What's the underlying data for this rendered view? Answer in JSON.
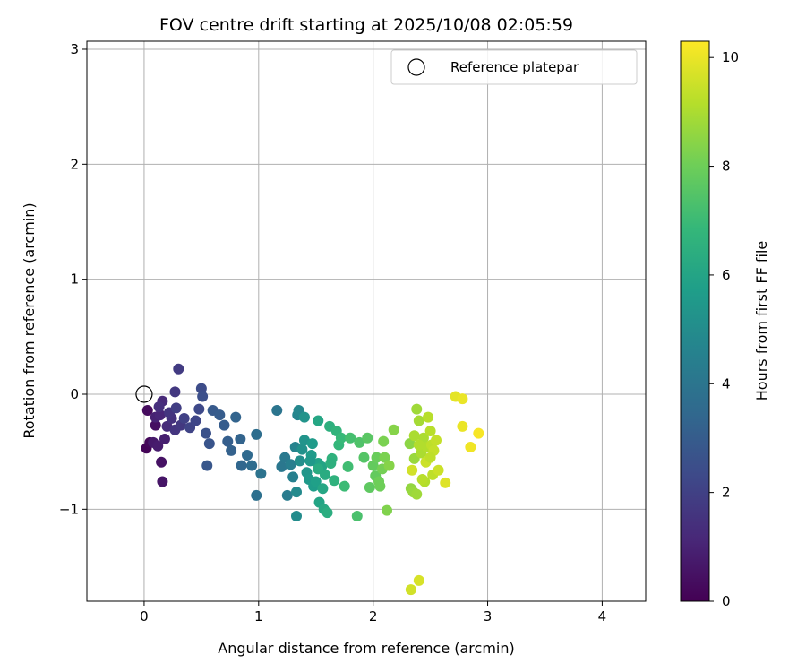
{
  "chart_data": {
    "type": "scatter",
    "title": "FOV centre drift starting at 2025/10/08 02:05:59",
    "xlabel": "Angular distance from reference (arcmin)",
    "ylabel": "Rotation from reference (arcmin)",
    "xlim": [
      -0.5,
      4.38
    ],
    "ylim": [
      -1.8,
      3.07
    ],
    "xticks": [
      0,
      1,
      2,
      3,
      4
    ],
    "xtick_labels": [
      "0",
      "1",
      "2",
      "3",
      "4"
    ],
    "yticks": [
      -1,
      0,
      1,
      2,
      3
    ],
    "ytick_labels": [
      "−1",
      "0",
      "1",
      "2",
      "3"
    ],
    "grid": true,
    "legend": {
      "position": "top-right",
      "label": "Reference platepar"
    },
    "reference_point": {
      "x": 0,
      "y": 0
    },
    "colorbar": {
      "label": "Hours from first FF file",
      "min": 0,
      "max": 10.3,
      "ticks": [
        0,
        2,
        4,
        6,
        8,
        10
      ],
      "tick_labels": [
        "0",
        "2",
        "4",
        "6",
        "8",
        "10"
      ],
      "colormap": [
        "#440154",
        "#482878",
        "#3e4989",
        "#31688e",
        "#26828e",
        "#1f9e89",
        "#35b779",
        "#6ece58",
        "#b5de2b",
        "#fde725"
      ]
    },
    "points": [
      [
        0.02,
        -0.47,
        0.1
      ],
      [
        0.05,
        -0.42,
        0.2
      ],
      [
        0.03,
        -0.14,
        0.3
      ],
      [
        0.1,
        -0.27,
        0.4
      ],
      [
        0.15,
        -0.59,
        0.5
      ],
      [
        0.16,
        -0.76,
        0.6
      ],
      [
        0.08,
        -0.42,
        0.7
      ],
      [
        0.12,
        -0.45,
        0.8
      ],
      [
        0.18,
        -0.39,
        0.9
      ],
      [
        0.1,
        -0.2,
        1.0
      ],
      [
        0.14,
        -0.18,
        1.1
      ],
      [
        0.16,
        -0.06,
        1.2
      ],
      [
        0.2,
        -0.28,
        1.3
      ],
      [
        0.13,
        -0.11,
        1.4
      ],
      [
        0.24,
        -0.21,
        1.5
      ],
      [
        0.27,
        -0.31,
        1.6
      ],
      [
        0.22,
        -0.16,
        1.6
      ],
      [
        0.27,
        0.02,
        1.7
      ],
      [
        0.3,
        0.22,
        1.8
      ],
      [
        0.28,
        -0.12,
        1.9
      ],
      [
        0.32,
        -0.27,
        1.7
      ],
      [
        0.35,
        -0.21,
        2.0
      ],
      [
        0.4,
        -0.29,
        2.1
      ],
      [
        0.45,
        -0.23,
        2.2
      ],
      [
        0.48,
        -0.13,
        2.3
      ],
      [
        0.5,
        0.05,
        2.4
      ],
      [
        0.51,
        -0.02,
        2.5
      ],
      [
        0.54,
        -0.34,
        2.6
      ],
      [
        0.57,
        -0.43,
        2.7
      ],
      [
        0.55,
        -0.62,
        2.8
      ],
      [
        0.6,
        -0.14,
        2.9
      ],
      [
        0.66,
        -0.18,
        3.0
      ],
      [
        0.7,
        -0.27,
        3.0
      ],
      [
        0.73,
        -0.41,
        3.1
      ],
      [
        0.76,
        -0.49,
        3.2
      ],
      [
        0.8,
        -0.2,
        3.3
      ],
      [
        0.84,
        -0.39,
        3.3
      ],
      [
        0.85,
        -0.62,
        3.4
      ],
      [
        0.9,
        -0.53,
        3.5
      ],
      [
        0.94,
        -0.62,
        3.6
      ],
      [
        0.98,
        -0.35,
        3.7
      ],
      [
        0.98,
        -0.88,
        3.8
      ],
      [
        1.02,
        -0.69,
        3.9
      ],
      [
        1.16,
        -0.14,
        4.0
      ],
      [
        1.2,
        -0.63,
        4.1
      ],
      [
        1.23,
        -0.55,
        4.2
      ],
      [
        1.25,
        -0.88,
        4.3
      ],
      [
        1.28,
        -0.61,
        4.4
      ],
      [
        1.3,
        -0.72,
        4.5
      ],
      [
        1.32,
        -0.46,
        4.6
      ],
      [
        1.34,
        -0.18,
        4.7
      ],
      [
        1.35,
        -0.14,
        4.8
      ],
      [
        1.33,
        -0.85,
        4.9
      ],
      [
        1.33,
        -1.06,
        5.0
      ],
      [
        1.36,
        -0.58,
        5.1
      ],
      [
        1.38,
        -0.48,
        5.2
      ],
      [
        1.4,
        -0.2,
        5.3
      ],
      [
        1.4,
        -0.4,
        5.3
      ],
      [
        1.42,
        -0.68,
        5.4
      ],
      [
        1.44,
        -0.74,
        5.5
      ],
      [
        1.46,
        -0.53,
        5.6
      ],
      [
        1.47,
        -0.43,
        5.6
      ],
      [
        1.48,
        -0.8,
        5.7
      ],
      [
        1.5,
        -0.76,
        5.8
      ],
      [
        1.52,
        -0.6,
        5.9
      ],
      [
        1.53,
        -0.94,
        6.0
      ],
      [
        1.55,
        -0.63,
        6.0
      ],
      [
        1.56,
        -0.82,
        6.1
      ],
      [
        1.57,
        -1.0,
        6.2
      ],
      [
        1.58,
        -0.7,
        6.3
      ],
      [
        1.6,
        -1.03,
        6.4
      ],
      [
        1.62,
        -0.28,
        6.5
      ],
      [
        1.64,
        -0.56,
        6.6
      ],
      [
        1.66,
        -0.75,
        6.6
      ],
      [
        1.68,
        -0.32,
        6.7
      ],
      [
        1.7,
        -0.44,
        6.8
      ],
      [
        1.72,
        -0.38,
        6.9
      ],
      [
        1.75,
        -0.8,
        7.0
      ],
      [
        1.78,
        -0.63,
        7.1
      ],
      [
        1.8,
        -0.38,
        7.2
      ],
      [
        1.86,
        -1.06,
        7.3
      ],
      [
        1.88,
        -0.42,
        7.4
      ],
      [
        1.92,
        -0.55,
        7.5
      ],
      [
        1.95,
        -0.38,
        7.6
      ],
      [
        1.97,
        -0.81,
        7.7
      ],
      [
        2.0,
        -0.62,
        7.8
      ],
      [
        2.02,
        -0.71,
        7.8
      ],
      [
        2.03,
        -0.55,
        7.9
      ],
      [
        2.05,
        -0.76,
        8.0
      ],
      [
        2.06,
        -0.8,
        8.0
      ],
      [
        2.08,
        -0.65,
        8.1
      ],
      [
        2.09,
        -0.41,
        8.2
      ],
      [
        2.1,
        -0.55,
        8.2
      ],
      [
        2.12,
        -1.01,
        8.3
      ],
      [
        2.14,
        -0.62,
        8.4
      ],
      [
        2.18,
        -0.31,
        8.4
      ],
      [
        1.52,
        -0.23,
        6.1
      ],
      [
        1.63,
        -0.6,
        6.5
      ],
      [
        1.52,
        -0.65,
        6.3
      ],
      [
        1.45,
        -0.58,
        5.5
      ],
      [
        2.32,
        -0.43,
        8.5
      ],
      [
        2.33,
        -0.82,
        8.6
      ],
      [
        2.35,
        -0.85,
        8.7
      ],
      [
        2.36,
        -0.56,
        8.7
      ],
      [
        2.38,
        -0.87,
        8.8
      ],
      [
        2.38,
        -0.13,
        8.8
      ],
      [
        2.4,
        -0.23,
        8.9
      ],
      [
        2.42,
        -0.51,
        9.0
      ],
      [
        2.44,
        -0.38,
        9.0
      ],
      [
        2.45,
        -0.76,
        9.1
      ],
      [
        2.47,
        -0.46,
        9.1
      ],
      [
        2.48,
        -0.2,
        9.2
      ],
      [
        2.5,
        -0.32,
        9.2
      ],
      [
        2.51,
        -0.44,
        9.3
      ],
      [
        2.52,
        -0.7,
        9.3
      ],
      [
        2.53,
        -0.49,
        9.4
      ],
      [
        2.55,
        -0.4,
        9.4
      ],
      [
        2.57,
        -0.66,
        9.5
      ],
      [
        2.46,
        -0.59,
        9.5
      ],
      [
        2.34,
        -0.66,
        9.6
      ],
      [
        2.33,
        -1.7,
        9.6
      ],
      [
        2.4,
        -1.62,
        9.7
      ],
      [
        2.63,
        -0.77,
        9.8
      ],
      [
        2.72,
        -0.02,
        9.9
      ],
      [
        2.78,
        -0.04,
        10.0
      ],
      [
        2.78,
        -0.28,
        10.0
      ],
      [
        2.85,
        -0.46,
        10.1
      ],
      [
        2.92,
        -0.34,
        10.2
      ],
      [
        2.36,
        -0.36,
        9.0
      ],
      [
        2.43,
        -0.74,
        9.2
      ],
      [
        2.5,
        -0.55,
        9.3
      ],
      [
        2.4,
        -0.44,
        9.1
      ]
    ]
  }
}
